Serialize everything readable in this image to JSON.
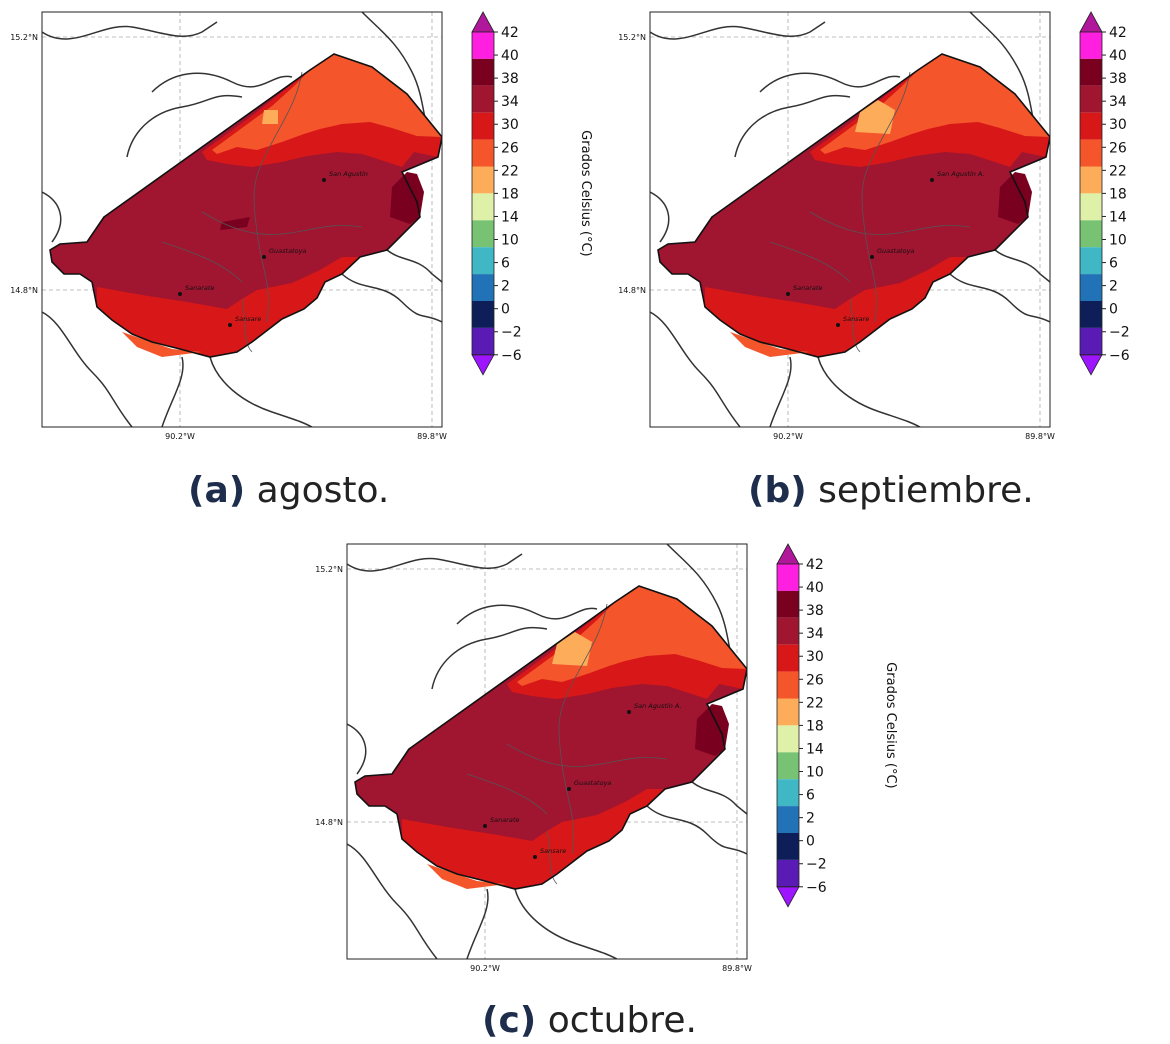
{
  "colorbar": {
    "label": "Grados Celsius (°C)",
    "ticks": [
      "42",
      "40",
      "38",
      "34",
      "30",
      "26",
      "22",
      "18",
      "14",
      "10",
      "6",
      "2",
      "0",
      "−2",
      "−6"
    ],
    "colors": [
      "#b0179a",
      "#ff1fe0",
      "#7a0020",
      "#a01530",
      "#d81818",
      "#f4552b",
      "#fdad5a",
      "#dff0a8",
      "#78c274",
      "#3fb7c4",
      "#2272b8",
      "#0e1e58",
      "#5a1bb4",
      "#9d16ff"
    ]
  },
  "map": {
    "lat_labels": [
      "15.2°N",
      "14.8°N"
    ],
    "lon_labels": [
      "90.2°W",
      "89.8°W"
    ],
    "towns": [
      "San Agustín A.",
      "Guastatoya",
      "Sanarate",
      "Sansare"
    ],
    "towns_a": [
      "San Agustín",
      "Guastatoya",
      "Sanarate",
      "Sansare"
    ]
  },
  "panels": [
    {
      "letter": "(a)",
      "month": "agosto."
    },
    {
      "letter": "(b)",
      "month": "septiembre."
    },
    {
      "letter": "(c)",
      "month": "octubre."
    }
  ]
}
